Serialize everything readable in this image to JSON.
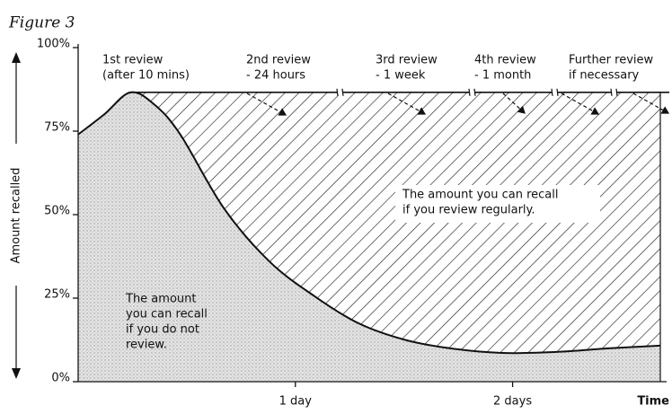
{
  "chart_data": {
    "type": "line",
    "title": "Figure 3",
    "x_label": "Time",
    "y_label": "Amount recalled",
    "x": [
      0,
      0.12,
      0.24,
      0.35,
      0.47,
      0.67,
      0.88,
      1.09,
      1.29,
      1.5,
      1.71,
      1.95,
      2.2,
      2.45,
      2.68
    ],
    "values": [
      74,
      80,
      86.6,
      83,
      74,
      52,
      36,
      25.5,
      17.5,
      12.6,
      10,
      8.6,
      8.9,
      10,
      10.8
    ],
    "review_level": 86.6,
    "color": "#111111",
    "xlim": [
      0,
      2.68
    ],
    "ylim": [
      0,
      100
    ],
    "xticks": [
      {
        "value": 1,
        "label": "1 day"
      },
      {
        "value": 2,
        "label": "2 days"
      }
    ],
    "yticks": [
      {
        "value": 0,
        "label": "0%"
      },
      {
        "value": 25,
        "label": "25%"
      },
      {
        "value": 50,
        "label": "50%"
      },
      {
        "value": 75,
        "label": "75%"
      },
      {
        "value": 100,
        "label": "100%"
      }
    ],
    "annotations": [
      [
        "1st review",
        "(after 10 mins)"
      ],
      [
        "2nd review",
        "- 24 hours"
      ],
      [
        "3rd review",
        "- 1 week"
      ],
      [
        "4th review",
        "- 1 month"
      ],
      [
        "Further review",
        "if necessary"
      ]
    ],
    "upper_area_label": [
      "The amount you can recall",
      "if you review regularly."
    ],
    "lower_area_label": [
      "The amount",
      "you can recall",
      "if you do not",
      "review."
    ]
  }
}
